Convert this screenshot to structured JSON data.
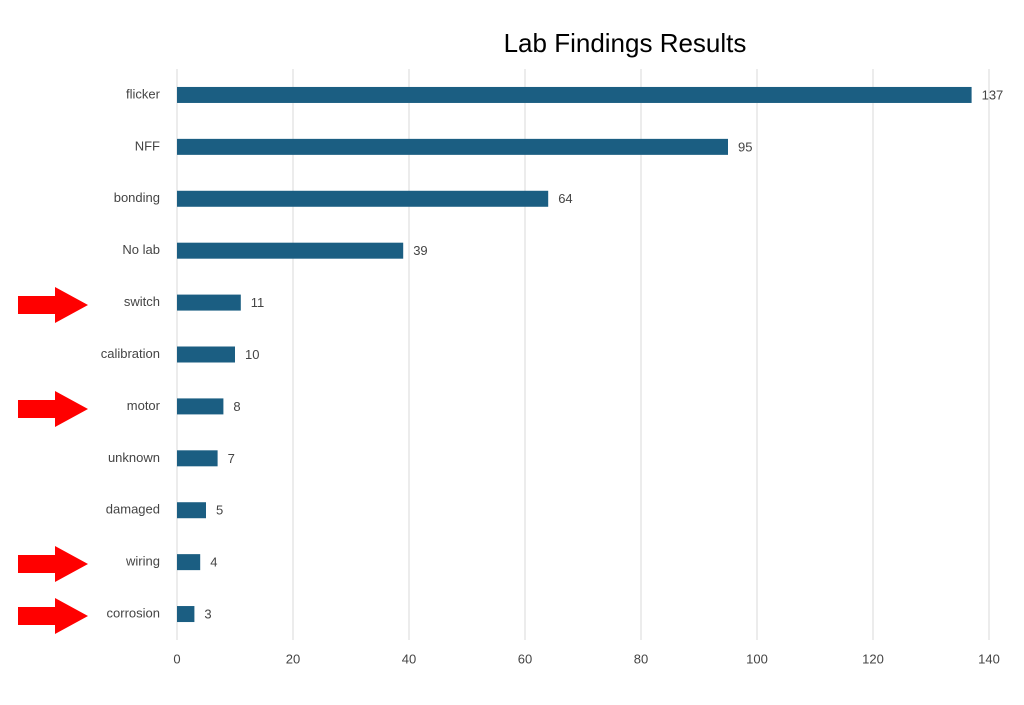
{
  "chart_data": {
    "type": "barh",
    "title": "Lab Findings Results",
    "categories": [
      "flicker",
      "NFF",
      "bonding",
      "No lab",
      "switch",
      "calibration",
      "motor",
      "unknown",
      "damaged",
      "wiring",
      "corrosion"
    ],
    "values": [
      137,
      95,
      64,
      39,
      11,
      10,
      8,
      7,
      5,
      4,
      3
    ],
    "color": "#1b5e82",
    "xlim": [
      0,
      140
    ],
    "xticks": [
      0,
      20,
      40,
      60,
      80,
      100,
      120,
      140
    ],
    "grid": true
  }
}
